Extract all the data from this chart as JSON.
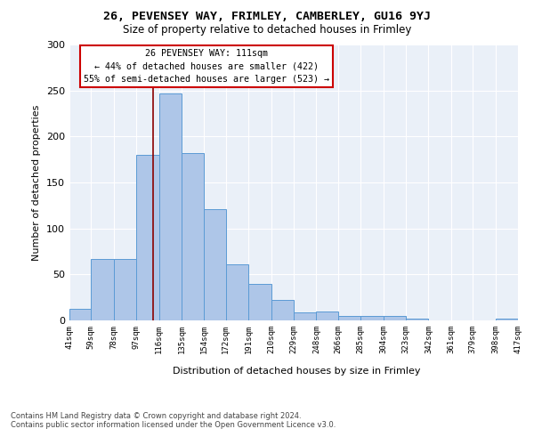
{
  "title1": "26, PEVENSEY WAY, FRIMLEY, CAMBERLEY, GU16 9YJ",
  "title2": "Size of property relative to detached houses in Frimley",
  "xlabel": "Distribution of detached houses by size in Frimley",
  "ylabel": "Number of detached properties",
  "bar_values": [
    13,
    67,
    67,
    180,
    247,
    182,
    121,
    61,
    40,
    22,
    9,
    10,
    5,
    5,
    5,
    2,
    0,
    0,
    0,
    2
  ],
  "bin_labels": [
    "41sqm",
    "59sqm",
    "78sqm",
    "97sqm",
    "116sqm",
    "135sqm",
    "154sqm",
    "172sqm",
    "191sqm",
    "210sqm",
    "229sqm",
    "248sqm",
    "266sqm",
    "285sqm",
    "304sqm",
    "323sqm",
    "342sqm",
    "361sqm",
    "379sqm",
    "398sqm",
    "417sqm"
  ],
  "bin_edges": [
    41,
    59,
    78,
    97,
    116,
    135,
    154,
    172,
    191,
    210,
    229,
    248,
    266,
    285,
    304,
    323,
    342,
    361,
    379,
    398,
    417
  ],
  "bar_color": "#aec6e8",
  "bar_edge_color": "#5b9bd5",
  "vline_x": 111,
  "vline_color": "#8b0000",
  "annotation_title": "26 PEVENSEY WAY: 111sqm",
  "annotation_line1": "← 44% of detached houses are smaller (422)",
  "annotation_line2": "55% of semi-detached houses are larger (523) →",
  "annotation_box_color": "#ffffff",
  "annotation_box_edge": "#cc0000",
  "ylim": [
    0,
    300
  ],
  "yticks": [
    0,
    50,
    100,
    150,
    200,
    250,
    300
  ],
  "bg_color": "#eaf0f8",
  "footer1": "Contains HM Land Registry data © Crown copyright and database right 2024.",
  "footer2": "Contains public sector information licensed under the Open Government Licence v3.0."
}
